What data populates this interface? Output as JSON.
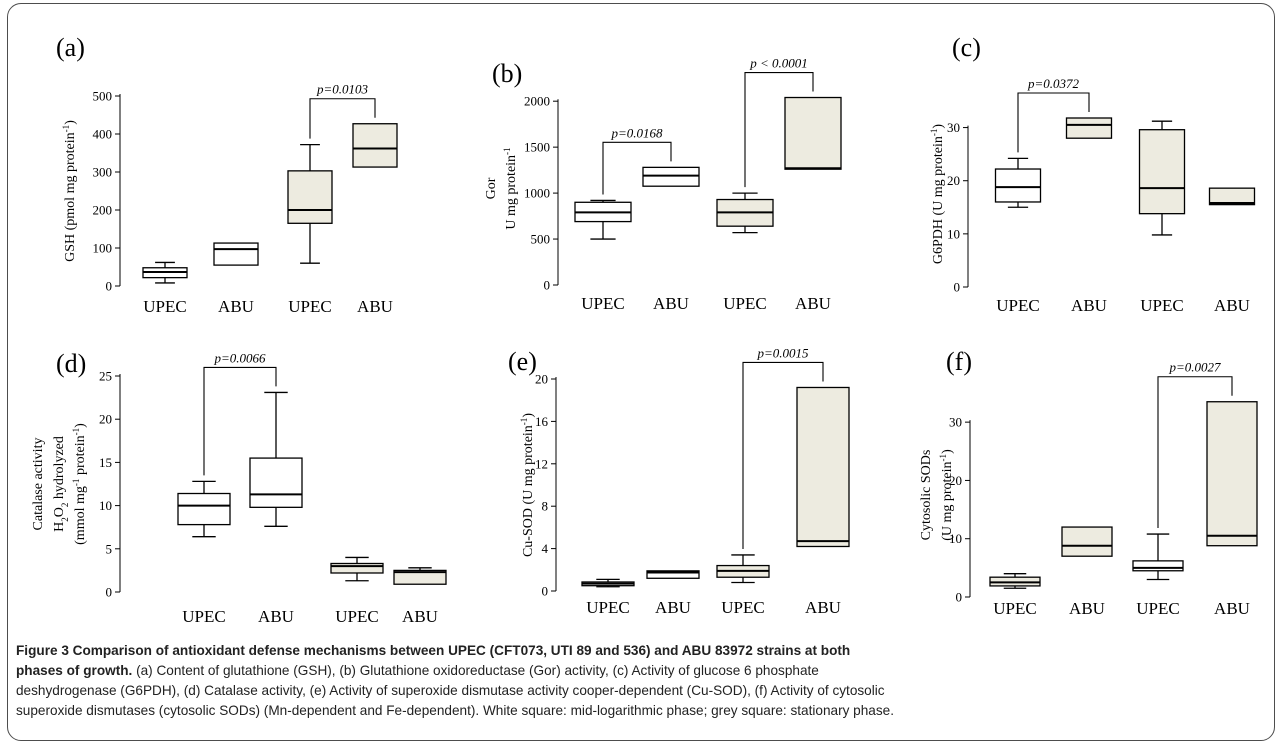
{
  "caption": {
    "title_line1": "Figure 3 Comparison of antioxidant defense mechanisms between UPEC (CFT073, UTI 89 and 536) and ABU 83972 strains at both",
    "title_line2": "phases of growth.",
    "body_line2": " (a) Content of glutathione (GSH), (b) Glutathione oxidoreductase (Gor) activity, (c) Activity of glucose 6 phosphate",
    "body_line3": "deshydrogenase (G6PDH), (d) Catalase activity, (e) Activity of superoxide dismutase activity cooper-dependent (Cu-SOD), (f) Activity of cytosolic",
    "body_line4": "superoxide dismutases (cytosolic SODs) (Mn-dependent and Fe-dependent). White square: mid-logarithmic phase; grey square: stationary phase."
  },
  "colors": {
    "white_box": "#ffffff",
    "grey_box": "#edebe0",
    "stroke": "#000000",
    "frame": "#4d4d4d"
  },
  "chart_data": [
    {
      "panel": "(a)",
      "type": "box",
      "ylabel": [
        "GSH (pmol mg protein",
        "-1",
        ")"
      ],
      "ylim": [
        0,
        500
      ],
      "yticks": [
        0,
        100,
        200,
        300,
        400,
        500
      ],
      "categories": [
        "UPEC",
        "ABU",
        "UPEC",
        "ABU"
      ],
      "boxes": [
        {
          "min": 8,
          "q1": 22,
          "median": 37,
          "q3": 48,
          "max": 62,
          "fill": "white"
        },
        {
          "min": 55,
          "q1": 55,
          "median": 97,
          "q3": 113,
          "max": 113,
          "fill": "white"
        },
        {
          "min": 60,
          "q1": 165,
          "median": 200,
          "q3": 303,
          "max": 372,
          "fill": "grey"
        },
        {
          "min": 313,
          "q1": 313,
          "median": 362,
          "q3": 427,
          "max": 427,
          "fill": "grey"
        }
      ],
      "annotation": {
        "text": "p=0.0103",
        "from": 2,
        "to": 3
      }
    },
    {
      "panel": "(b)",
      "type": "box",
      "ylabel_line1": "Gor",
      "ylabel": [
        "U mg protein",
        "-1",
        ""
      ],
      "ylim": [
        0,
        2100
      ],
      "yticks": [
        0,
        500,
        1000,
        1500,
        2000
      ],
      "categories": [
        "UPEC",
        "ABU",
        "UPEC",
        "ABU"
      ],
      "boxes": [
        {
          "min": 500,
          "q1": 690,
          "median": 790,
          "q3": 900,
          "max": 920,
          "fill": "white"
        },
        {
          "min": 1075,
          "q1": 1075,
          "median": 1190,
          "q3": 1280,
          "max": 1280,
          "fill": "white"
        },
        {
          "min": 570,
          "q1": 640,
          "median": 790,
          "q3": 930,
          "max": 1000,
          "fill": "grey"
        },
        {
          "min": 1260,
          "q1": 1260,
          "median": 1270,
          "q3": 2040,
          "max": 2040,
          "fill": "grey"
        }
      ],
      "annotations": [
        {
          "text": "p=0.0168",
          "from": 0,
          "to": 1
        },
        {
          "text": "p < 0.0001",
          "from": 2,
          "to": 3
        }
      ]
    },
    {
      "panel": "(c)",
      "type": "box",
      "ylabel": [
        "G6PDH (U mg protein",
        "-1",
        ")"
      ],
      "ylim": [
        0,
        35
      ],
      "yticks": [
        0,
        10,
        20,
        30
      ],
      "categories": [
        "UPEC",
        "ABU",
        "UPEC",
        "ABU"
      ],
      "boxes": [
        {
          "min": 15,
          "q1": 16,
          "median": 18.8,
          "q3": 22.2,
          "max": 24.2,
          "fill": "white"
        },
        {
          "min": 28,
          "q1": 28,
          "median": 30.5,
          "q3": 31.8,
          "max": 31.8,
          "fill": "grey"
        },
        {
          "min": 9.8,
          "q1": 13.8,
          "median": 18.6,
          "q3": 29.6,
          "max": 31.2,
          "fill": "grey"
        },
        {
          "min": 15.5,
          "q1": 15.5,
          "median": 15.8,
          "q3": 18.6,
          "max": 18.6,
          "fill": "grey"
        }
      ],
      "annotation": {
        "text": "p=0.0372",
        "from": 0,
        "to": 1
      }
    },
    {
      "panel": "(d)",
      "type": "box",
      "ylabel_line1": "Catalase activity",
      "ylabel_line2": "H2O2 hydrolyzed",
      "ylabel": [
        "(mmol mg",
        "-1",
        " protein",
        "-1",
        ")"
      ],
      "ylim": [
        0,
        25
      ],
      "yticks": [
        0,
        5,
        10,
        15,
        20,
        25
      ],
      "categories": [
        "UPEC",
        "ABU",
        "UPEC",
        "ABU"
      ],
      "boxes": [
        {
          "min": 6.4,
          "q1": 7.8,
          "median": 10,
          "q3": 11.4,
          "max": 12.8,
          "fill": "white"
        },
        {
          "min": 7.6,
          "q1": 9.8,
          "median": 11.3,
          "q3": 15.5,
          "max": 23.1,
          "fill": "white"
        },
        {
          "min": 1.3,
          "q1": 2.2,
          "median": 3,
          "q3": 3.3,
          "max": 4,
          "fill": "grey"
        },
        {
          "min": 0.9,
          "q1": 0.9,
          "median": 2.3,
          "q3": 2.5,
          "max": 2.8,
          "fill": "grey"
        }
      ],
      "annotation": {
        "text": "p=0.0066",
        "from": 0,
        "to": 1
      }
    },
    {
      "panel": "(e)",
      "type": "box",
      "ylabel": [
        "Cu-SOD  (U mg protein",
        "-1",
        ")"
      ],
      "ylim": [
        0,
        20
      ],
      "yticks": [
        0,
        4,
        8,
        12,
        16,
        20
      ],
      "categories": [
        "UPEC",
        "ABU",
        "UPEC",
        "ABU"
      ],
      "boxes": [
        {
          "min": 0.4,
          "q1": 0.5,
          "median": 0.7,
          "q3": 0.85,
          "max": 1.1,
          "fill": "white"
        },
        {
          "min": 1.2,
          "q1": 1.2,
          "median": 1.75,
          "q3": 1.9,
          "max": 1.9,
          "fill": "white"
        },
        {
          "min": 0.8,
          "q1": 1.3,
          "median": 1.9,
          "q3": 2.4,
          "max": 3.4,
          "fill": "grey"
        },
        {
          "min": 4.2,
          "q1": 4.2,
          "median": 4.7,
          "q3": 19.2,
          "max": 19.2,
          "fill": "grey"
        }
      ],
      "annotation": {
        "text": "p=0.0015",
        "from": 2,
        "to": 3
      }
    },
    {
      "panel": "(f)",
      "type": "box",
      "ylabel_line1": "Cytosolic SODs",
      "ylabel": [
        "(U mg protein",
        "-1",
        ")"
      ],
      "ylim": [
        0,
        35
      ],
      "yticks": [
        0,
        10,
        20,
        30
      ],
      "categories": [
        "UPEC",
        "ABU",
        "UPEC",
        "ABU"
      ],
      "boxes": [
        {
          "min": 1.5,
          "q1": 1.9,
          "median": 2.5,
          "q3": 3.4,
          "max": 4,
          "fill": "grey"
        },
        {
          "min": 7,
          "q1": 7,
          "median": 8.8,
          "q3": 12,
          "max": 12,
          "fill": "grey"
        },
        {
          "min": 3,
          "q1": 4.5,
          "median": 5,
          "q3": 6.2,
          "max": 10.8,
          "fill": "white"
        },
        {
          "min": 8.8,
          "q1": 8.8,
          "median": 10.5,
          "q3": 33.5,
          "max": 33.5,
          "fill": "grey"
        }
      ],
      "annotation": {
        "text": "p=0.0027",
        "from": 2,
        "to": 3
      }
    }
  ]
}
